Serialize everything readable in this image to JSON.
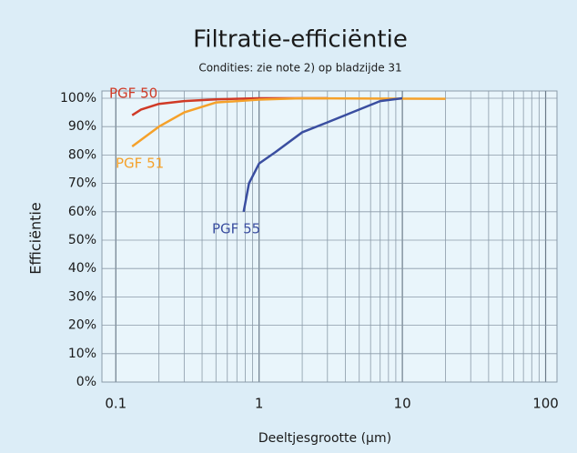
{
  "chart_data": {
    "type": "line",
    "title": "Filtratie-efficiëntie",
    "subtitle": "Condities: zie note 2) op bladzijde 31",
    "x_label": "Deeltjesgrootte (µm)",
    "y_label": "Efficiëntie",
    "x_log": true,
    "xlim": [
      0.08,
      120
    ],
    "xticks": [
      0.1,
      1,
      10,
      100
    ],
    "x_minor_ticks": [
      0.2,
      0.3,
      0.4,
      0.5,
      0.6,
      0.7,
      0.8,
      0.9,
      2,
      3,
      4,
      5,
      6,
      7,
      8,
      9,
      20,
      30,
      40,
      50,
      60,
      70,
      80,
      90
    ],
    "ylim": [
      0,
      100
    ],
    "yticks": [
      {
        "value": 0,
        "label": "0%"
      },
      {
        "value": 10,
        "label": "10%"
      },
      {
        "value": 20,
        "label": "20%"
      },
      {
        "value": 30,
        "label": "30%"
      },
      {
        "value": 40,
        "label": "40%"
      },
      {
        "value": 50,
        "label": "50%"
      },
      {
        "value": 60,
        "label": "60%"
      },
      {
        "value": 70,
        "label": "70%"
      },
      {
        "value": 80,
        "label": "80%"
      },
      {
        "value": 90,
        "label": "90%"
      },
      {
        "value": 100,
        "label": "100%"
      }
    ],
    "grid": true,
    "series": [
      {
        "name": "PGF 50",
        "color": "#d03a26",
        "x": [
          0.13,
          0.15,
          0.2,
          0.3,
          0.5,
          1,
          3
        ],
        "values": [
          94,
          96,
          98,
          99,
          99.6,
          100,
          100
        ]
      },
      {
        "name": "PGF 51",
        "color": "#f5a12a",
        "x": [
          0.13,
          0.2,
          0.3,
          0.5,
          1,
          2,
          20
        ],
        "values": [
          83,
          90,
          95,
          98.5,
          99.5,
          100,
          99.8
        ]
      },
      {
        "name": "PGF 55",
        "color": "#3a4ea0",
        "x": [
          0.78,
          0.85,
          1,
          1.3,
          2,
          3,
          7,
          10
        ],
        "values": [
          60,
          70,
          77,
          81,
          88,
          91.5,
          99,
          100
        ]
      }
    ]
  }
}
